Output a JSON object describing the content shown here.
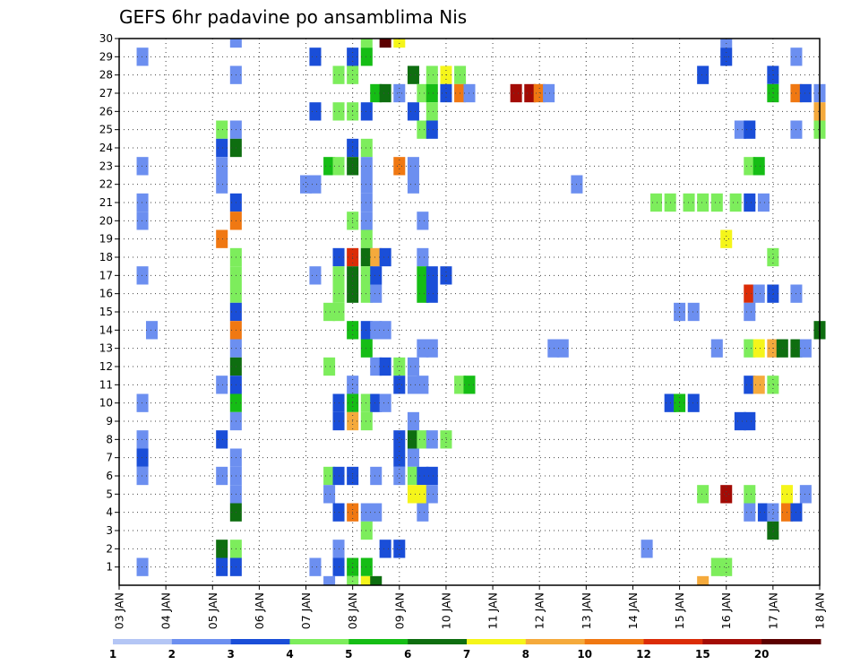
{
  "chart_data": {
    "type": "heatmap",
    "title": "GEFS 6hr padavine po ansamblima Nis",
    "xlabel": "",
    "ylabel": "",
    "x_start_day": 3,
    "x_end_day": 18,
    "x_tick_labels": [
      "03 JAN",
      "04 JAN",
      "05 JAN",
      "06 JAN",
      "07 JAN",
      "08 JAN",
      "09 JAN",
      "10 JAN",
      "11 JAN",
      "12 JAN",
      "13 JAN",
      "14 JAN",
      "15 JAN",
      "16 JAN",
      "17 JAN",
      "18 JAN"
    ],
    "y_tick_labels": [
      "1",
      "2",
      "3",
      "4",
      "5",
      "6",
      "7",
      "8",
      "9",
      "10",
      "11",
      "12",
      "13",
      "14",
      "15",
      "16",
      "17",
      "18",
      "19",
      "20",
      "21",
      "22",
      "23",
      "24",
      "25",
      "26",
      "27",
      "28",
      "29",
      "30"
    ],
    "ylim": [
      0,
      30
    ],
    "grid": true,
    "legend_position": "bottom",
    "legend_ticks": [
      "1",
      "2",
      "3",
      "4",
      "5",
      "6",
      "7",
      "8",
      "10",
      "12",
      "15",
      "20"
    ],
    "bin_colors": [
      "#b4c6f5",
      "#6c8ff0",
      "#1a4ed8",
      "#7ded5c",
      "#15bd15",
      "#0e6e10",
      "#f5f51a",
      "#f5aa3c",
      "#f07812",
      "#db2c07",
      "#a30b05",
      "#5c0000"
    ],
    "cells": [
      [
        5.5,
        30,
        1
      ],
      [
        8.3,
        30,
        3
      ],
      [
        8.7,
        30,
        11
      ],
      [
        9.0,
        30,
        6
      ],
      [
        16.0,
        30,
        1
      ],
      [
        3.5,
        29,
        1
      ],
      [
        7.2,
        29,
        2
      ],
      [
        8.0,
        29,
        2
      ],
      [
        8.3,
        29,
        4
      ],
      [
        16.0,
        29,
        2
      ],
      [
        17.5,
        29,
        1
      ],
      [
        5.5,
        28,
        1
      ],
      [
        7.7,
        28,
        3
      ],
      [
        8.0,
        28,
        3
      ],
      [
        9.3,
        28,
        5
      ],
      [
        9.7,
        28,
        3
      ],
      [
        10.0,
        28,
        6
      ],
      [
        10.3,
        28,
        3
      ],
      [
        15.5,
        28,
        2
      ],
      [
        17.0,
        28,
        2
      ],
      [
        8.5,
        27,
        4
      ],
      [
        8.7,
        27,
        5
      ],
      [
        9.0,
        27,
        1
      ],
      [
        9.5,
        27,
        3
      ],
      [
        9.7,
        27,
        4
      ],
      [
        10.0,
        27,
        2
      ],
      [
        10.3,
        27,
        8
      ],
      [
        10.5,
        27,
        1
      ],
      [
        11.5,
        27,
        10
      ],
      [
        11.8,
        27,
        10
      ],
      [
        12.0,
        27,
        8
      ],
      [
        12.2,
        27,
        1
      ],
      [
        17.0,
        27,
        4
      ],
      [
        17.5,
        27,
        8
      ],
      [
        17.7,
        27,
        2
      ],
      [
        18.0,
        27,
        1
      ],
      [
        7.2,
        26,
        2
      ],
      [
        7.7,
        26,
        3
      ],
      [
        8.0,
        26,
        3
      ],
      [
        8.3,
        26,
        2
      ],
      [
        9.3,
        26,
        2
      ],
      [
        9.7,
        26,
        3
      ],
      [
        18.0,
        26,
        7
      ],
      [
        5.2,
        25,
        3
      ],
      [
        5.5,
        25,
        1
      ],
      [
        9.5,
        25,
        3
      ],
      [
        9.7,
        25,
        2
      ],
      [
        16.3,
        25,
        1
      ],
      [
        16.5,
        25,
        2
      ],
      [
        17.5,
        25,
        1
      ],
      [
        18.0,
        25,
        3
      ],
      [
        5.2,
        24,
        2
      ],
      [
        5.5,
        24,
        5
      ],
      [
        8.0,
        24,
        2
      ],
      [
        8.3,
        24,
        3
      ],
      [
        3.5,
        23,
        1
      ],
      [
        5.2,
        23,
        1
      ],
      [
        7.5,
        23,
        4
      ],
      [
        7.7,
        23,
        3
      ],
      [
        8.0,
        23,
        5
      ],
      [
        8.3,
        23,
        1
      ],
      [
        9.0,
        23,
        8
      ],
      [
        9.3,
        23,
        1
      ],
      [
        16.5,
        23,
        3
      ],
      [
        16.7,
        23,
        4
      ],
      [
        5.2,
        22,
        1
      ],
      [
        7.0,
        22,
        1
      ],
      [
        7.2,
        22,
        1
      ],
      [
        8.3,
        22,
        1
      ],
      [
        9.3,
        22,
        1
      ],
      [
        12.8,
        22,
        1
      ],
      [
        3.5,
        21,
        1
      ],
      [
        5.5,
        21,
        2
      ],
      [
        8.3,
        21,
        1
      ],
      [
        14.5,
        21,
        3
      ],
      [
        14.8,
        21,
        3
      ],
      [
        15.2,
        21,
        3
      ],
      [
        15.5,
        21,
        3
      ],
      [
        15.8,
        21,
        3
      ],
      [
        16.2,
        21,
        3
      ],
      [
        16.5,
        21,
        2
      ],
      [
        16.8,
        21,
        1
      ],
      [
        3.5,
        20,
        1
      ],
      [
        5.5,
        20,
        8
      ],
      [
        8.0,
        20,
        3
      ],
      [
        8.3,
        20,
        1
      ],
      [
        9.5,
        20,
        1
      ],
      [
        5.2,
        19,
        8
      ],
      [
        8.3,
        19,
        3
      ],
      [
        16.0,
        19,
        6
      ],
      [
        5.5,
        18,
        3
      ],
      [
        7.7,
        18,
        2
      ],
      [
        8.0,
        18,
        9
      ],
      [
        8.3,
        18,
        5
      ],
      [
        8.5,
        18,
        7
      ],
      [
        8.7,
        18,
        2
      ],
      [
        9.5,
        18,
        1
      ],
      [
        17.0,
        18,
        3
      ],
      [
        3.5,
        17,
        1
      ],
      [
        5.5,
        17,
        3
      ],
      [
        7.2,
        17,
        1
      ],
      [
        7.7,
        17,
        3
      ],
      [
        8.0,
        17,
        5
      ],
      [
        8.3,
        17,
        3
      ],
      [
        8.5,
        17,
        2
      ],
      [
        9.5,
        17,
        4
      ],
      [
        9.7,
        17,
        2
      ],
      [
        10.0,
        17,
        2
      ],
      [
        5.5,
        16,
        3
      ],
      [
        7.7,
        16,
        3
      ],
      [
        8.0,
        16,
        5
      ],
      [
        8.3,
        16,
        3
      ],
      [
        8.5,
        16,
        1
      ],
      [
        9.5,
        16,
        4
      ],
      [
        9.7,
        16,
        2
      ],
      [
        16.5,
        16,
        9
      ],
      [
        16.7,
        16,
        1
      ],
      [
        17.0,
        16,
        2
      ],
      [
        17.5,
        16,
        1
      ],
      [
        5.5,
        15,
        2
      ],
      [
        7.5,
        15,
        3
      ],
      [
        7.7,
        15,
        3
      ],
      [
        15.0,
        15,
        1
      ],
      [
        15.3,
        15,
        1
      ],
      [
        16.5,
        15,
        1
      ],
      [
        3.7,
        14,
        1
      ],
      [
        5.5,
        14,
        8
      ],
      [
        8.0,
        14,
        4
      ],
      [
        8.3,
        14,
        2
      ],
      [
        8.5,
        14,
        1
      ],
      [
        8.7,
        14,
        1
      ],
      [
        18.0,
        14,
        5
      ],
      [
        5.5,
        13,
        1
      ],
      [
        8.3,
        13,
        4
      ],
      [
        9.5,
        13,
        1
      ],
      [
        9.7,
        13,
        1
      ],
      [
        12.3,
        13,
        1
      ],
      [
        12.5,
        13,
        1
      ],
      [
        15.8,
        13,
        1
      ],
      [
        16.5,
        13,
        3
      ],
      [
        16.7,
        13,
        6
      ],
      [
        17.0,
        13,
        7
      ],
      [
        17.2,
        13,
        5
      ],
      [
        17.5,
        13,
        5
      ],
      [
        17.7,
        13,
        1
      ],
      [
        5.5,
        12,
        5
      ],
      [
        7.5,
        12,
        3
      ],
      [
        8.5,
        12,
        1
      ],
      [
        8.7,
        12,
        2
      ],
      [
        9.0,
        12,
        3
      ],
      [
        9.3,
        12,
        1
      ],
      [
        5.2,
        11,
        1
      ],
      [
        5.5,
        11,
        2
      ],
      [
        8.0,
        11,
        1
      ],
      [
        9.0,
        11,
        2
      ],
      [
        9.3,
        11,
        1
      ],
      [
        9.5,
        11,
        1
      ],
      [
        10.3,
        11,
        3
      ],
      [
        10.5,
        11,
        4
      ],
      [
        16.5,
        11,
        2
      ],
      [
        16.7,
        11,
        7
      ],
      [
        17.0,
        11,
        3
      ],
      [
        3.5,
        10,
        1
      ],
      [
        5.5,
        10,
        4
      ],
      [
        7.7,
        10,
        2
      ],
      [
        8.0,
        10,
        4
      ],
      [
        8.3,
        10,
        3
      ],
      [
        8.5,
        10,
        2
      ],
      [
        8.7,
        10,
        1
      ],
      [
        14.8,
        10,
        2
      ],
      [
        15.0,
        10,
        4
      ],
      [
        15.3,
        10,
        2
      ],
      [
        5.5,
        9,
        1
      ],
      [
        7.7,
        9,
        2
      ],
      [
        8.0,
        9,
        7
      ],
      [
        8.3,
        9,
        3
      ],
      [
        9.3,
        9,
        1
      ],
      [
        16.3,
        9,
        2
      ],
      [
        16.5,
        9,
        2
      ],
      [
        3.5,
        8,
        1
      ],
      [
        5.2,
        8,
        2
      ],
      [
        9.0,
        8,
        2
      ],
      [
        9.3,
        8,
        5
      ],
      [
        9.5,
        8,
        3
      ],
      [
        9.7,
        8,
        1
      ],
      [
        10.0,
        8,
        3
      ],
      [
        3.5,
        7,
        2
      ],
      [
        5.5,
        7,
        1
      ],
      [
        9.0,
        7,
        2
      ],
      [
        9.3,
        7,
        1
      ],
      [
        3.5,
        6,
        1
      ],
      [
        5.2,
        6,
        1
      ],
      [
        5.5,
        6,
        1
      ],
      [
        7.5,
        6,
        3
      ],
      [
        7.7,
        6,
        2
      ],
      [
        8.0,
        6,
        2
      ],
      [
        8.5,
        6,
        1
      ],
      [
        9.0,
        6,
        1
      ],
      [
        9.3,
        6,
        3
      ],
      [
        9.5,
        6,
        2
      ],
      [
        9.7,
        6,
        2
      ],
      [
        5.5,
        5,
        1
      ],
      [
        7.5,
        5,
        1
      ],
      [
        9.3,
        5,
        6
      ],
      [
        9.5,
        5,
        6
      ],
      [
        9.7,
        5,
        1
      ],
      [
        15.5,
        5,
        3
      ],
      [
        16.0,
        5,
        10
      ],
      [
        16.5,
        5,
        3
      ],
      [
        17.3,
        5,
        6
      ],
      [
        17.7,
        5,
        1
      ],
      [
        5.5,
        4,
        5
      ],
      [
        7.7,
        4,
        2
      ],
      [
        8.0,
        4,
        8
      ],
      [
        8.3,
        4,
        1
      ],
      [
        8.5,
        4,
        1
      ],
      [
        9.5,
        4,
        1
      ],
      [
        16.5,
        4,
        1
      ],
      [
        16.8,
        4,
        2
      ],
      [
        17.0,
        4,
        1
      ],
      [
        17.3,
        4,
        8
      ],
      [
        17.5,
        4,
        2
      ],
      [
        8.3,
        3,
        3
      ],
      [
        17.0,
        3,
        5
      ],
      [
        5.2,
        2,
        5
      ],
      [
        5.5,
        2,
        3
      ],
      [
        7.7,
        2,
        1
      ],
      [
        8.7,
        2,
        2
      ],
      [
        9.0,
        2,
        2
      ],
      [
        14.3,
        2,
        1
      ],
      [
        3.5,
        1,
        1
      ],
      [
        5.2,
        1,
        2
      ],
      [
        5.5,
        1,
        2
      ],
      [
        7.2,
        1,
        1
      ],
      [
        7.7,
        1,
        2
      ],
      [
        8.0,
        1,
        4
      ],
      [
        8.3,
        1,
        4
      ],
      [
        15.8,
        1,
        3
      ],
      [
        16.0,
        1,
        3
      ],
      [
        7.5,
        0,
        1
      ],
      [
        8.0,
        0,
        3
      ],
      [
        8.3,
        0,
        6
      ],
      [
        8.5,
        0,
        5
      ],
      [
        15.5,
        0,
        7
      ]
    ]
  }
}
